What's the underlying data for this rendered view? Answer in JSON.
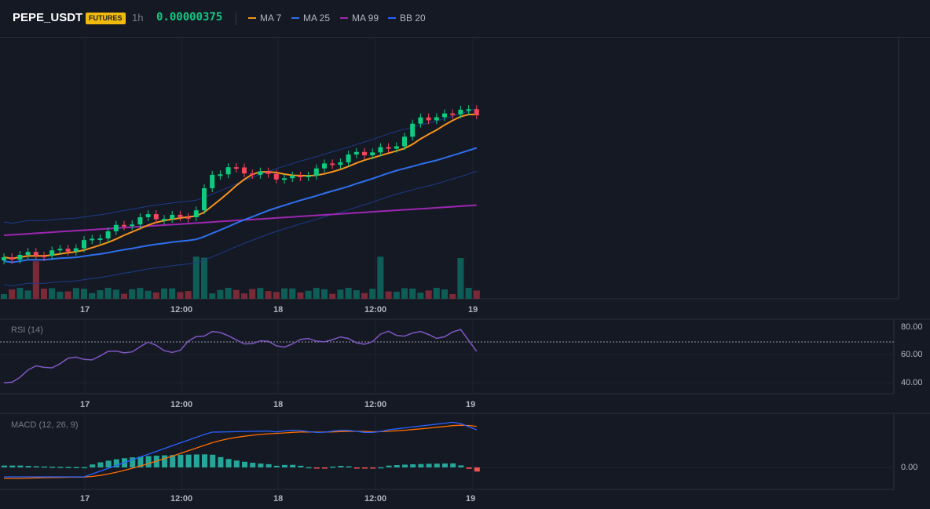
{
  "header": {
    "symbol": "PEPE_USDT",
    "badge": "FUTURES",
    "timeframe": "1h",
    "price": "0.00000375",
    "legend": [
      {
        "label": "MA 7",
        "color": "#f7931a"
      },
      {
        "label": "MA 25",
        "color": "#2f6fed"
      },
      {
        "label": "MA 99",
        "color": "#9c27b0"
      },
      {
        "label": "BB 20",
        "color": "#2962ff"
      }
    ]
  },
  "time_axis": {
    "labels": [
      "17",
      "12:00",
      "18",
      "12:00",
      "19"
    ]
  },
  "rsi": {
    "title": "RSI (14)",
    "scale": [
      "80.00",
      "60.00",
      "40.00"
    ],
    "overbought": 70
  },
  "macd": {
    "title": "MACD (12, 26, 9)",
    "scale": [
      "0.00"
    ]
  },
  "colors": {
    "up": "#0ecb81",
    "down": "#f6465d",
    "up_vol": "#0e5e57",
    "down_vol": "#7a2a36",
    "ma7": "#f7931a",
    "ma25": "#2f6fed",
    "ma99": "#9c27b0",
    "bb": "#1e3a8a",
    "rsi": "#7e57c2",
    "macd": "#2962ff",
    "signal": "#ff6d00",
    "hist_up": "#26a69a",
    "hist_down": "#ef5350"
  }
}
